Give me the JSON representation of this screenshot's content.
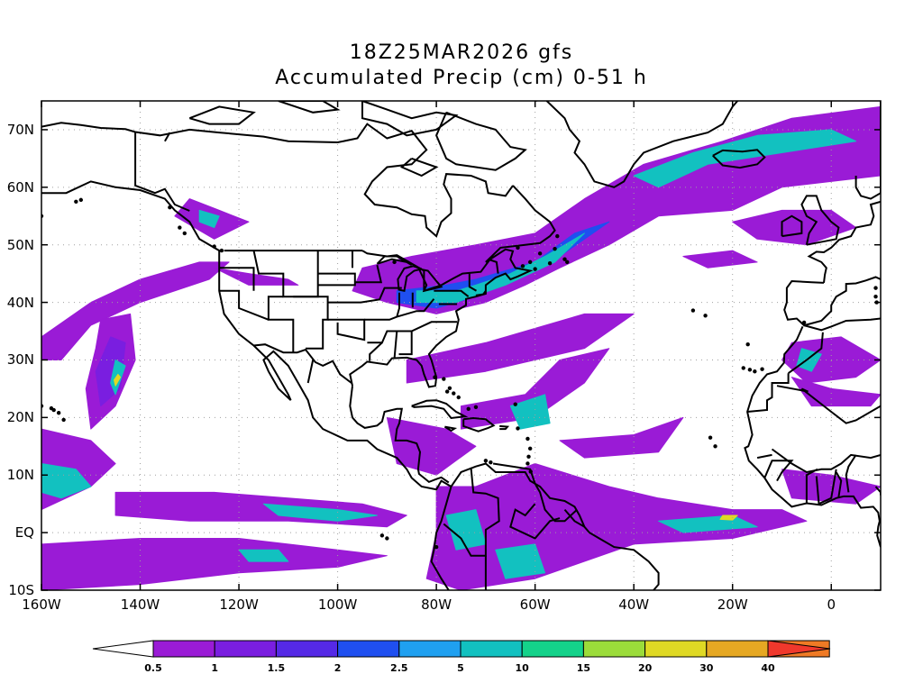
{
  "title_line1": "18Z25MAR2026 gfs",
  "title_line2": "Accumulated Precip (cm) 0-51 h",
  "y_labels": [
    "70N",
    "60N",
    "50N",
    "40N",
    "30N",
    "20N",
    "10N",
    "EQ",
    "10S"
  ],
  "x_labels": [
    "160W",
    "140W",
    "120W",
    "100W",
    "80W",
    "60W",
    "40W",
    "20W",
    "0"
  ],
  "colorbar": {
    "values": [
      "0.5",
      "1",
      "1.5",
      "2",
      "2.5",
      "5",
      "10",
      "15",
      "20",
      "30",
      "40"
    ],
    "colors": [
      "#9a1bd6",
      "#7a1ee0",
      "#5529e6",
      "#1f4ff0",
      "#1fa0f0",
      "#12c1c0",
      "#14d28a",
      "#9bdc3a",
      "#dfd924",
      "#e6a823",
      "#ef7a25",
      "#f0382c"
    ]
  },
  "map": {
    "lon_range": [
      -160,
      10
    ],
    "lat_range": [
      -10,
      75
    ],
    "colors": {
      "land_outline": "#000000",
      "grid": "#a0a0a0",
      "precip_low": "#9a1bd6",
      "precip_mid": "#7a1ee0",
      "precip_blue": "#1f4ff0",
      "precip_cyan": "#12c1c0",
      "precip_green": "#14d28a",
      "precip_yellow": "#dfd924"
    }
  }
}
